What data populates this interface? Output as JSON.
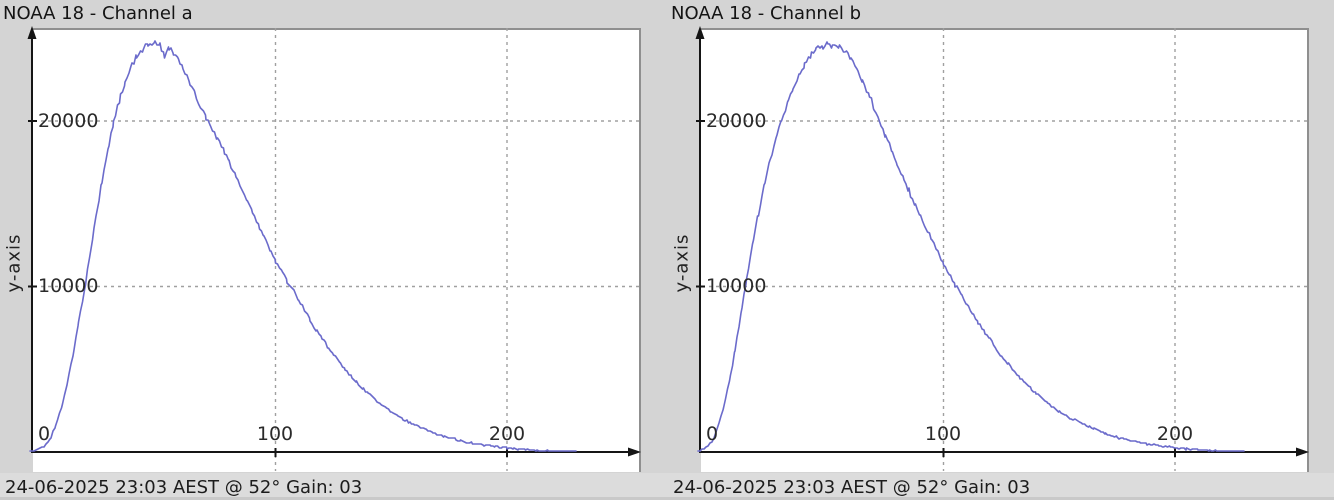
{
  "colors": {
    "page_bg": "#d4d4d4",
    "caption_bg": "#dcdcdc",
    "plot_bg": "#ffffff",
    "curve": "#6b6bcb",
    "grid": "#a0a0a0",
    "axis": "#151515",
    "plot_border": "#8f8f8f",
    "text": "#1c1c1c"
  },
  "chart_data": [
    {
      "type": "line",
      "title": "NOAA 18 - Channel a",
      "ylabel": "y-axis",
      "xlabel": "",
      "caption": "24-06-2025 23:03 AEST @ 52° Gain: 03",
      "x_ticks": [
        0,
        100,
        200
      ],
      "y_ticks": [
        10000,
        20000
      ],
      "xlim": [
        0,
        257
      ],
      "ylim": [
        0,
        25600
      ],
      "grid": "dashed",
      "legend": "none",
      "points": [
        [
          -6,
          0
        ],
        [
          0,
          300
        ],
        [
          3,
          900
        ],
        [
          5,
          1600
        ],
        [
          8,
          2900
        ],
        [
          10,
          4100
        ],
        [
          13,
          6200
        ],
        [
          15,
          7800
        ],
        [
          18,
          10200
        ],
        [
          20,
          12000
        ],
        [
          23,
          14600
        ],
        [
          25,
          16300
        ],
        [
          28,
          18600
        ],
        [
          30,
          19900
        ],
        [
          33,
          21500
        ],
        [
          35,
          22400
        ],
        [
          38,
          23400
        ],
        [
          40,
          23900
        ],
        [
          43,
          24400
        ],
        [
          45,
          24600
        ],
        [
          48,
          24750
        ],
        [
          50,
          24700
        ],
        [
          52,
          23950
        ],
        [
          54,
          24400
        ],
        [
          56,
          24100
        ],
        [
          58,
          23700
        ],
        [
          60,
          23100
        ],
        [
          63,
          22300
        ],
        [
          65,
          21700
        ],
        [
          68,
          20800
        ],
        [
          70,
          20200
        ],
        [
          72,
          19700
        ],
        [
          75,
          18900
        ],
        [
          78,
          18100
        ],
        [
          80,
          17500
        ],
        [
          83,
          16600
        ],
        [
          85,
          16000
        ],
        [
          88,
          15100
        ],
        [
          90,
          14500
        ],
        [
          93,
          13600
        ],
        [
          95,
          13000
        ],
        [
          98,
          12100
        ],
        [
          100,
          11500
        ],
        [
          103,
          10800
        ],
        [
          105,
          10300
        ],
        [
          108,
          9700
        ],
        [
          110,
          9200
        ],
        [
          113,
          8500
        ],
        [
          115,
          8000
        ],
        [
          118,
          7300
        ],
        [
          120,
          6900
        ],
        [
          123,
          6300
        ],
        [
          125,
          5900
        ],
        [
          128,
          5400
        ],
        [
          130,
          5000
        ],
        [
          133,
          4500
        ],
        [
          135,
          4200
        ],
        [
          138,
          3800
        ],
        [
          140,
          3550
        ],
        [
          143,
          3200
        ],
        [
          145,
          2950
        ],
        [
          148,
          2650
        ],
        [
          150,
          2450
        ],
        [
          153,
          2200
        ],
        [
          155,
          2000
        ],
        [
          158,
          1780
        ],
        [
          160,
          1640
        ],
        [
          163,
          1450
        ],
        [
          165,
          1330
        ],
        [
          168,
          1170
        ],
        [
          170,
          1070
        ],
        [
          173,
          940
        ],
        [
          175,
          860
        ],
        [
          178,
          750
        ],
        [
          180,
          690
        ],
        [
          183,
          600
        ],
        [
          185,
          550
        ],
        [
          188,
          480
        ],
        [
          190,
          430
        ],
        [
          193,
          370
        ],
        [
          195,
          330
        ],
        [
          198,
          280
        ],
        [
          200,
          250
        ],
        [
          203,
          210
        ],
        [
          205,
          180
        ],
        [
          208,
          150
        ],
        [
          210,
          120
        ],
        [
          213,
          95
        ],
        [
          215,
          75
        ],
        [
          218,
          55
        ],
        [
          220,
          40
        ],
        [
          223,
          28
        ],
        [
          225,
          18
        ],
        [
          228,
          10
        ],
        [
          230,
          5
        ]
      ]
    },
    {
      "type": "line",
      "title": "NOAA 18 - Channel b",
      "ylabel": "y-axis",
      "xlabel": "",
      "caption": "24-06-2025 23:03 AEST @ 52° Gain: 03",
      "x_ticks": [
        0,
        100,
        200
      ],
      "y_ticks": [
        10000,
        20000
      ],
      "xlim": [
        0,
        257
      ],
      "ylim": [
        0,
        25600
      ],
      "grid": "dashed",
      "legend": "none",
      "points": [
        [
          -6,
          0
        ],
        [
          0,
          600
        ],
        [
          3,
          1700
        ],
        [
          5,
          2700
        ],
        [
          8,
          4600
        ],
        [
          10,
          6200
        ],
        [
          13,
          8700
        ],
        [
          15,
          10400
        ],
        [
          18,
          12900
        ],
        [
          20,
          14400
        ],
        [
          23,
          16400
        ],
        [
          25,
          17600
        ],
        [
          28,
          19200
        ],
        [
          30,
          20100
        ],
        [
          33,
          21300
        ],
        [
          35,
          22000
        ],
        [
          38,
          22900
        ],
        [
          40,
          23400
        ],
        [
          43,
          24000
        ],
        [
          45,
          24300
        ],
        [
          48,
          24550
        ],
        [
          50,
          24650
        ],
        [
          52,
          24600
        ],
        [
          55,
          24450
        ],
        [
          58,
          24200
        ],
        [
          60,
          23800
        ],
        [
          63,
          23000
        ],
        [
          65,
          22400
        ],
        [
          68,
          21500
        ],
        [
          70,
          20800
        ],
        [
          73,
          19800
        ],
        [
          75,
          19100
        ],
        [
          78,
          18100
        ],
        [
          80,
          17400
        ],
        [
          83,
          16400
        ],
        [
          85,
          15800
        ],
        [
          88,
          14900
        ],
        [
          90,
          14300
        ],
        [
          93,
          13400
        ],
        [
          95,
          12800
        ],
        [
          98,
          12000
        ],
        [
          100,
          11400
        ],
        [
          103,
          10600
        ],
        [
          105,
          10100
        ],
        [
          108,
          9400
        ],
        [
          110,
          8900
        ],
        [
          113,
          8300
        ],
        [
          115,
          7800
        ],
        [
          118,
          7200
        ],
        [
          120,
          6800
        ],
        [
          123,
          6200
        ],
        [
          125,
          5800
        ],
        [
          128,
          5300
        ],
        [
          130,
          4950
        ],
        [
          133,
          4500
        ],
        [
          135,
          4200
        ],
        [
          138,
          3800
        ],
        [
          140,
          3550
        ],
        [
          143,
          3200
        ],
        [
          145,
          2950
        ],
        [
          148,
          2650
        ],
        [
          150,
          2450
        ],
        [
          153,
          2200
        ],
        [
          155,
          2050
        ],
        [
          158,
          1830
        ],
        [
          160,
          1690
        ],
        [
          163,
          1500
        ],
        [
          165,
          1380
        ],
        [
          168,
          1220
        ],
        [
          170,
          1110
        ],
        [
          173,
          980
        ],
        [
          175,
          890
        ],
        [
          178,
          780
        ],
        [
          180,
          710
        ],
        [
          183,
          620
        ],
        [
          185,
          560
        ],
        [
          188,
          490
        ],
        [
          190,
          440
        ],
        [
          193,
          380
        ],
        [
          195,
          340
        ],
        [
          198,
          290
        ],
        [
          200,
          255
        ],
        [
          203,
          215
        ],
        [
          205,
          185
        ],
        [
          208,
          155
        ],
        [
          210,
          125
        ],
        [
          213,
          100
        ],
        [
          215,
          80
        ],
        [
          218,
          60
        ],
        [
          220,
          45
        ],
        [
          223,
          32
        ],
        [
          225,
          22
        ],
        [
          228,
          12
        ],
        [
          230,
          6
        ]
      ]
    }
  ]
}
